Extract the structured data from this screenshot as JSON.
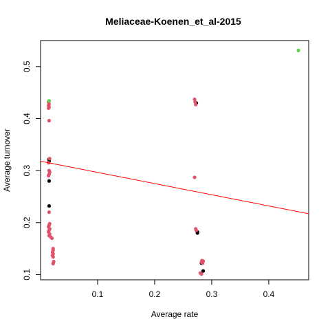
{
  "chart_data": {
    "type": "scatter",
    "title": "Meliaceae-Koenen_et_al-2015",
    "xlabel": "Average rate",
    "ylabel": "Average turnover",
    "xlim": [
      0.0,
      0.47
    ],
    "ylim": [
      0.09,
      0.55
    ],
    "xticks": [
      0.1,
      0.2,
      0.3,
      0.4
    ],
    "yticks": [
      0.1,
      0.2,
      0.3,
      0.4,
      0.5
    ],
    "xtick_labels": [
      "0.1",
      "0.2",
      "0.3",
      "0.4"
    ],
    "ytick_labels": [
      "0.1",
      "0.2",
      "0.3",
      "0.4",
      "0.5"
    ],
    "grid": false,
    "colors": {
      "pink": "#DF536B",
      "black": "#000000",
      "green": "#61D04F",
      "line": "#FF0000"
    },
    "series": [
      {
        "color_key": "black",
        "points": [
          [
            0.015,
            0.322
          ],
          [
            0.015,
            0.318
          ],
          [
            0.015,
            0.28
          ],
          [
            0.015,
            0.232
          ],
          [
            0.273,
            0.43
          ],
          [
            0.275,
            0.182
          ],
          [
            0.275,
            0.18
          ],
          [
            0.282,
            0.122
          ],
          [
            0.285,
            0.107
          ]
        ]
      },
      {
        "color_key": "pink",
        "points": [
          [
            0.014,
            0.432
          ],
          [
            0.015,
            0.428
          ],
          [
            0.014,
            0.425
          ],
          [
            0.015,
            0.422
          ],
          [
            0.014,
            0.42
          ],
          [
            0.015,
            0.396
          ],
          [
            0.016,
            0.323
          ],
          [
            0.014,
            0.315
          ],
          [
            0.015,
            0.3
          ],
          [
            0.016,
            0.297
          ],
          [
            0.015,
            0.293
          ],
          [
            0.014,
            0.29
          ],
          [
            0.015,
            0.22
          ],
          [
            0.016,
            0.198
          ],
          [
            0.015,
            0.195
          ],
          [
            0.014,
            0.192
          ],
          [
            0.016,
            0.188
          ],
          [
            0.015,
            0.185
          ],
          [
            0.014,
            0.182
          ],
          [
            0.016,
            0.178
          ],
          [
            0.015,
            0.175
          ],
          [
            0.018,
            0.172
          ],
          [
            0.02,
            0.17
          ],
          [
            0.022,
            0.15
          ],
          [
            0.022,
            0.147
          ],
          [
            0.021,
            0.143
          ],
          [
            0.022,
            0.14
          ],
          [
            0.021,
            0.137
          ],
          [
            0.022,
            0.134
          ],
          [
            0.023,
            0.125
          ],
          [
            0.022,
            0.121
          ],
          [
            0.27,
            0.437
          ],
          [
            0.271,
            0.432
          ],
          [
            0.272,
            0.427
          ],
          [
            0.27,
            0.287
          ],
          [
            0.272,
            0.188
          ],
          [
            0.273,
            0.185
          ],
          [
            0.283,
            0.127
          ],
          [
            0.285,
            0.126
          ],
          [
            0.282,
            0.124
          ],
          [
            0.284,
            0.122
          ],
          [
            0.28,
            0.103
          ],
          [
            0.282,
            0.101
          ]
        ]
      },
      {
        "color_key": "green",
        "points": [
          [
            0.452,
            0.531
          ],
          [
            0.015,
            0.434
          ]
        ]
      }
    ],
    "trend_line": {
      "x": [
        0.0,
        0.47
      ],
      "y": [
        0.318,
        0.217
      ]
    }
  }
}
